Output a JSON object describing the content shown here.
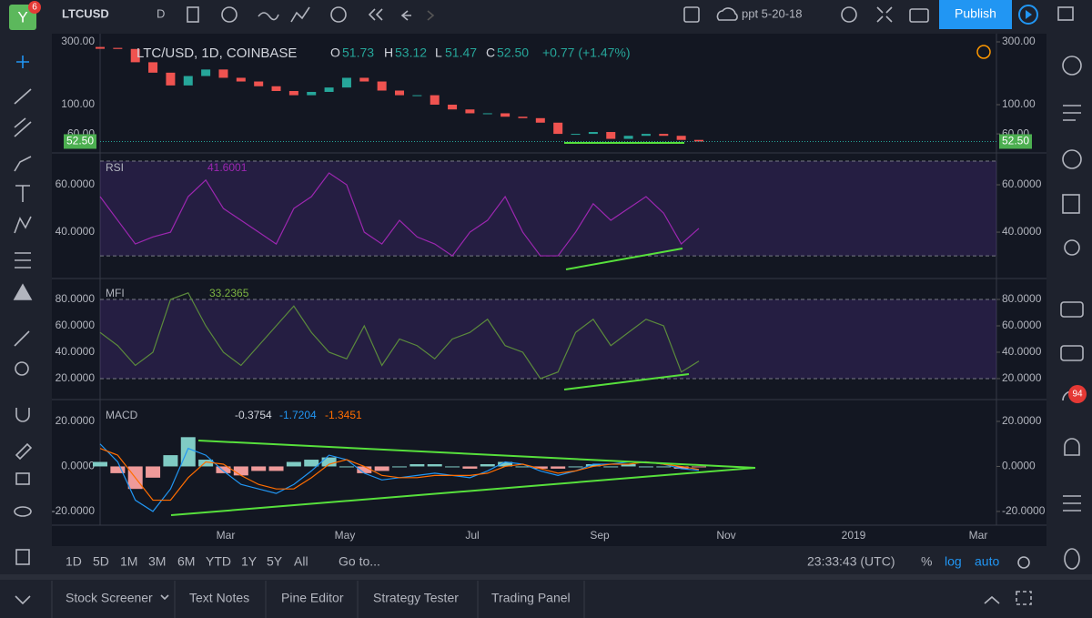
{
  "header": {
    "logo": "Y",
    "badge": "6",
    "symbol": "LTCUSD",
    "interval": "D",
    "layout_name": "ppt 5-20-18",
    "publish": "Publish"
  },
  "price": {
    "legend": {
      "title": "LTC/USD, 1D, COINBASE",
      "o_label": "O",
      "o": "51.73",
      "h_label": "H",
      "h": "53.12",
      "l_label": "L",
      "l": "51.47",
      "c_label": "C",
      "c": "52.50",
      "change": "+0.77 (+1.47%)"
    },
    "last_label": "52.50",
    "log": true,
    "ylim": [
      43.7,
      330
    ],
    "yticks": [
      {
        "value": 300,
        "label": "300.00"
      },
      {
        "value": 100,
        "label": "100.00"
      },
      {
        "value": 60,
        "label": "60.00"
      }
    ],
    "up_color": "#26a69a",
    "down_color": "#ef5350",
    "closes": [
      270,
      265,
      210,
      175,
      140,
      165,
      185,
      160,
      150,
      138,
      127,
      118,
      125,
      135,
      160,
      150,
      128,
      118,
      118,
      100,
      92,
      86,
      86,
      81,
      79,
      73,
      60,
      60,
      62,
      55,
      58,
      60,
      58,
      54,
      52.5
    ]
  },
  "rsi": {
    "name": "RSI",
    "value_label": "41.6001",
    "color": "#9c27b0",
    "ylim": [
      20.8,
      72.7
    ],
    "yticks": [
      {
        "value": 60,
        "label": "60.0000"
      },
      {
        "value": 40,
        "label": "40.0000"
      }
    ],
    "bands": [
      30,
      70
    ],
    "values": [
      55,
      45,
      35,
      38,
      40,
      55,
      62,
      50,
      45,
      40,
      35,
      50,
      55,
      65,
      60,
      40,
      35,
      45,
      38,
      35,
      30,
      40,
      45,
      55,
      40,
      30,
      30,
      40,
      52,
      45,
      50,
      55,
      48,
      35,
      41.6001
    ]
  },
  "mfi": {
    "name": "MFI",
    "value_label": "33.2365",
    "color": "#5b8a3c",
    "ylim": [
      4.8,
      94.5
    ],
    "yticks": [
      {
        "value": 80,
        "label": "80.0000"
      },
      {
        "value": 60,
        "label": "60.0000"
      },
      {
        "value": 40,
        "label": "40.0000"
      },
      {
        "value": 20,
        "label": "20.0000"
      }
    ],
    "bands": [
      20,
      80
    ],
    "values": [
      55,
      45,
      30,
      40,
      80,
      85,
      60,
      40,
      30,
      45,
      60,
      75,
      55,
      40,
      35,
      60,
      30,
      50,
      45,
      35,
      50,
      55,
      65,
      45,
      40,
      20,
      25,
      55,
      65,
      45,
      55,
      65,
      60,
      25,
      33.2365
    ]
  },
  "macd": {
    "name": "MACD",
    "hist_label": "-0.3754",
    "macd_label": "-1.7204",
    "signal_label": "-1.3451",
    "ylim": [
      -26.1,
      28.9
    ],
    "yticks": [
      {
        "value": 20,
        "label": "20.0000"
      },
      {
        "value": 0,
        "label": "0.0000"
      },
      {
        "value": -20,
        "label": "-20.0000"
      }
    ],
    "hist_up_color": "#80cbc4",
    "hist_down_color": "#ef9a9a",
    "series": [
      {
        "color": "#2196f3",
        "values": [
          10,
          2,
          -15,
          -20,
          -10,
          8,
          5,
          -2,
          -8,
          -10,
          -12,
          -8,
          -2,
          5,
          3,
          -3,
          -6,
          -5,
          -4,
          -3,
          -4,
          -5,
          -2,
          2,
          1,
          -2,
          -4,
          -2,
          1,
          1,
          2,
          2,
          1,
          -1,
          -1.7204
        ]
      },
      {
        "color": "#ff6d00",
        "values": [
          8,
          5,
          -5,
          -15,
          -15,
          -5,
          2,
          1,
          -4,
          -8,
          -10,
          -10,
          -5,
          1,
          3,
          0,
          -4,
          -5,
          -5,
          -4,
          -4,
          -4,
          -3,
          0,
          1,
          -1,
          -3,
          -2,
          0,
          1,
          1,
          2,
          1,
          0,
          -1.3451
        ]
      }
    ]
  },
  "time_axis": [
    "Mar",
    "May",
    "Jul",
    "Sep",
    "Nov",
    "2019",
    "Mar"
  ],
  "footer": {
    "ranges": [
      "1D",
      "5D",
      "1M",
      "3M",
      "6M",
      "YTD",
      "1Y",
      "5Y",
      "All"
    ],
    "goto": "Go to...",
    "clock": "23:33:43 (UTC)",
    "percent": "%",
    "log": "log",
    "auto": "auto"
  },
  "tabs": [
    "Stock Screener",
    "Text Notes",
    "Pine Editor",
    "Strategy Tester",
    "Trading Panel"
  ],
  "notification_badge": "94"
}
